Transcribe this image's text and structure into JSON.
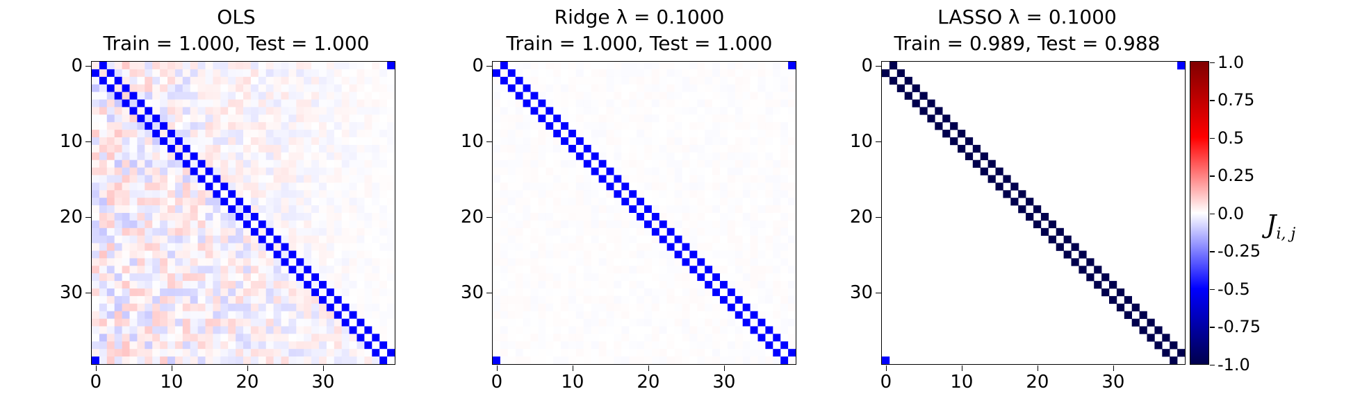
{
  "chart_data": [
    {
      "type": "heatmap",
      "title_line1": "OLS",
      "title_line2": "Train = 1.000, Test = 1.000",
      "n": 40,
      "xticks": [
        0,
        10,
        20,
        30
      ],
      "yticks": [
        0,
        10,
        20,
        30
      ],
      "coupling_value": -0.5,
      "noise_level": 0.12,
      "noise_region": "lower-left and upper-left triangles",
      "cells": "J[i][i+1] = J[i+1][i] = -0.5 (periodic), other entries small noise"
    },
    {
      "type": "heatmap",
      "title_line1": "Ridge λ = 0.1000",
      "title_line2": "Train = 1.000, Test = 1.000",
      "n": 40,
      "xticks": [
        0,
        10,
        20,
        30
      ],
      "yticks": [
        0,
        10,
        20,
        30
      ],
      "coupling_value": -0.5,
      "noise_level": 0.01
    },
    {
      "type": "heatmap",
      "title_line1": "LASSO λ = 0.1000",
      "title_line2": "Train = 0.989, Test = 0.988",
      "n": 40,
      "xticks": [
        0,
        10,
        20,
        30
      ],
      "yticks": [
        0,
        10,
        20,
        30
      ],
      "coupling_value": -1.0,
      "corner_value": -0.5,
      "noise_level": 0.0
    }
  ],
  "colorbar": {
    "label": "J",
    "label_sub": "i, j",
    "range": [
      -1.0,
      1.0
    ],
    "ticks": [
      "1.0",
      "0.75",
      "0.5",
      "0.25",
      "0.0",
      "-0.25",
      "-0.5",
      "-0.75",
      "-1.0"
    ],
    "tick_values": [
      1.0,
      0.75,
      0.5,
      0.25,
      0.0,
      -0.25,
      -0.5,
      -0.75,
      -1.0
    ],
    "colormap": "seismic"
  }
}
